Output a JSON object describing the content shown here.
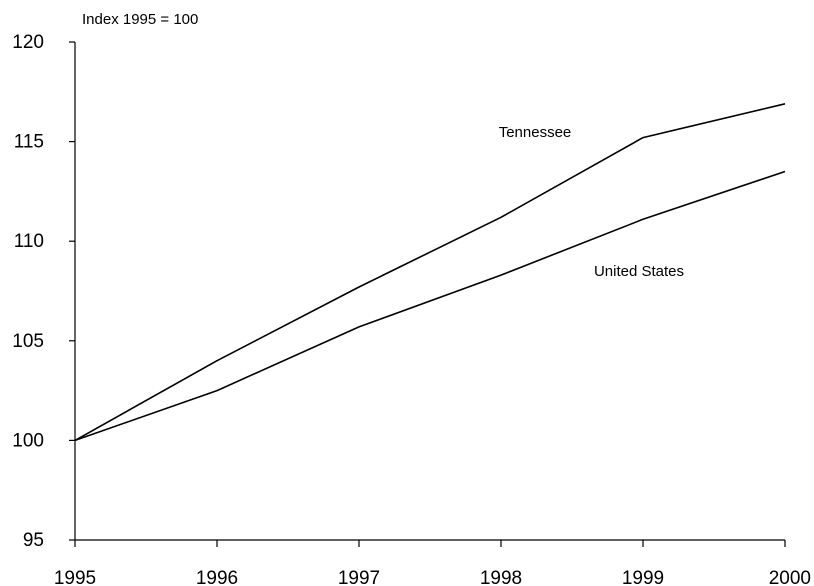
{
  "chart_data": {
    "type": "line",
    "title": "",
    "ylabel": "Index 1995 = 100",
    "xlabel": "",
    "x": [
      1995,
      1996,
      1997,
      1998,
      1999,
      2000
    ],
    "x_ticks": [
      "1995",
      "1996",
      "1997",
      "1998",
      "1999",
      "2000"
    ],
    "y_ticks": [
      "95",
      "100",
      "105",
      "110",
      "115",
      "120"
    ],
    "ylim": [
      95,
      120
    ],
    "xlim": [
      1995,
      2000
    ],
    "grid": false,
    "legend": "none",
    "series": [
      {
        "name": "Tennessee",
        "values": [
          100,
          104.0,
          107.7,
          111.2,
          115.2,
          116.9
        ],
        "color": "#000000"
      },
      {
        "name": "United States",
        "values": [
          100,
          102.5,
          105.7,
          108.3,
          111.1,
          113.5
        ],
        "color": "#000000"
      }
    ]
  }
}
